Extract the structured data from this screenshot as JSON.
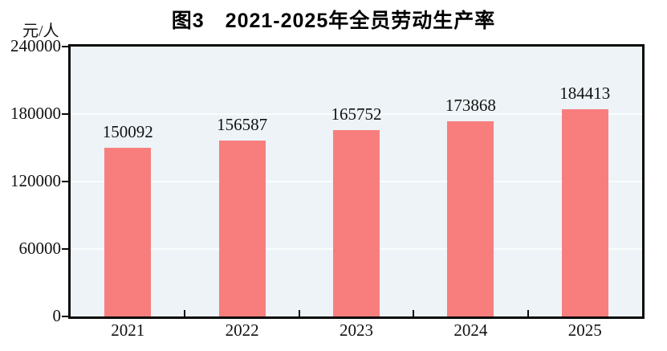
{
  "figure": {
    "title": "图3　2021-2025年全员劳动生产率",
    "unit_label": "元/人"
  },
  "chart_data": {
    "type": "bar",
    "title": "图3　2021-2025年全员劳动生产率",
    "categories": [
      "2021",
      "2022",
      "2023",
      "2024",
      "2025"
    ],
    "values": [
      150092,
      156587,
      165752,
      173868,
      184413
    ],
    "value_labels_shown": true,
    "xlabel": "",
    "ylabel": "元/人",
    "ylim": [
      0,
      240000
    ],
    "yticks": [
      0,
      60000,
      120000,
      180000,
      240000
    ],
    "grid": "horizontal-behind-bars",
    "legend": "none",
    "colors": {
      "bar_fill": "#f87e7e",
      "plot_background": "#edf3f7",
      "gridline": "#fbfdfe",
      "axis": "#0a0a0a",
      "text": "#111111"
    }
  }
}
